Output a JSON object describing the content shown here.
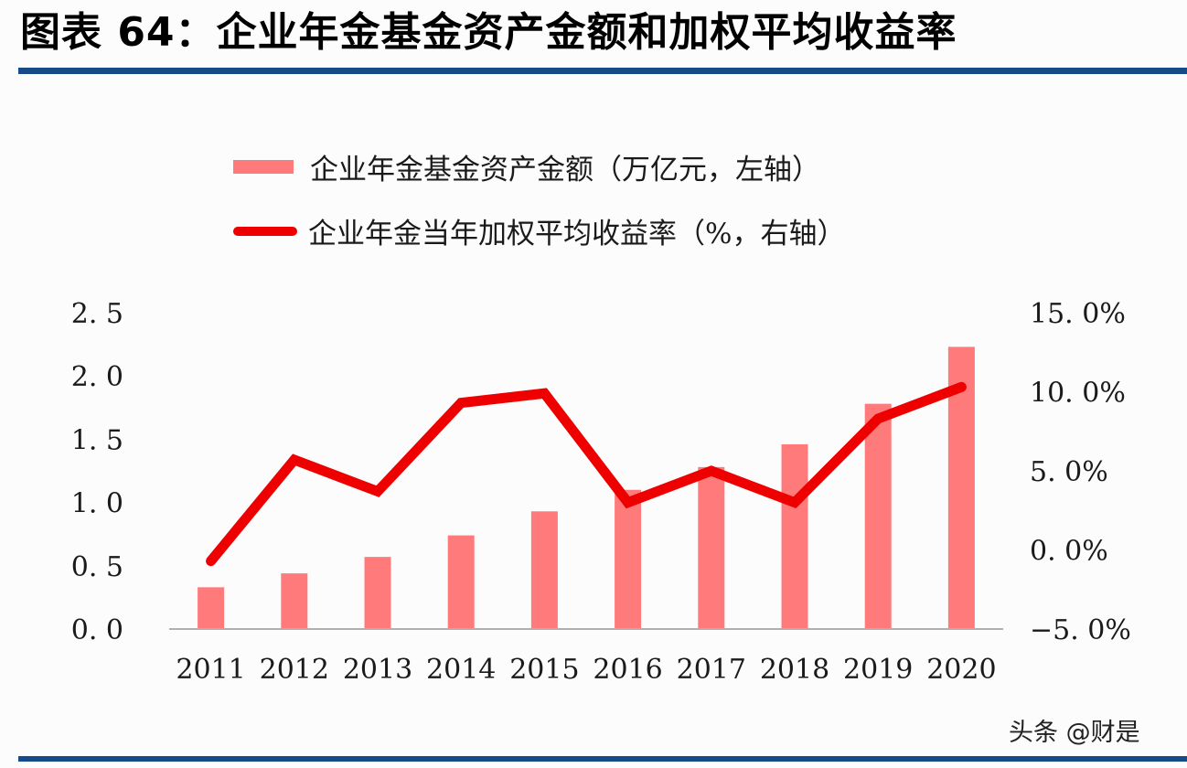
{
  "title": "图表 64：企业年金基金资产金额和加权平均收益率",
  "legend": {
    "bar_label": "企业年金基金资产金额（万亿元，左轴）",
    "line_label": "企业年金当年加权平均收益率（%，右轴）"
  },
  "watermark": "头条 @财是",
  "colors": {
    "bar": "#ff7b7b",
    "line": "#ee0000",
    "rule": "#164b8a",
    "axis": "#b0b0b0"
  },
  "chart_data": {
    "type": "bar+line",
    "title": "企业年金基金资产金额和加权平均收益率",
    "categories": [
      "2011",
      "2012",
      "2013",
      "2014",
      "2015",
      "2016",
      "2017",
      "2018",
      "2019",
      "2020"
    ],
    "series": [
      {
        "name": "企业年金基金资产金额（万亿元，左轴）",
        "type": "bar",
        "axis": "left",
        "values": [
          0.33,
          0.44,
          0.57,
          0.74,
          0.93,
          1.1,
          1.28,
          1.46,
          1.78,
          2.23
        ]
      },
      {
        "name": "企业年金当年加权平均收益率（%，右轴）",
        "type": "line",
        "axis": "right",
        "values": [
          -0.7,
          5.7,
          3.7,
          9.3,
          9.9,
          3.0,
          5.0,
          3.0,
          8.3,
          10.3
        ]
      }
    ],
    "left_axis": {
      "ylim": [
        0,
        2.5
      ],
      "ticks": [
        "0.0",
        "0.5",
        "1.0",
        "1.5",
        "2.0",
        "2.5"
      ]
    },
    "right_axis": {
      "ylim": [
        -5,
        15
      ],
      "ticks": [
        "-5.0%",
        "0.0%",
        "5.0%",
        "10.0%",
        "15.0%"
      ]
    },
    "xlabel": "",
    "ylabel_left": "万亿元",
    "ylabel_right": "%",
    "grid": false,
    "legend_position": "top"
  }
}
